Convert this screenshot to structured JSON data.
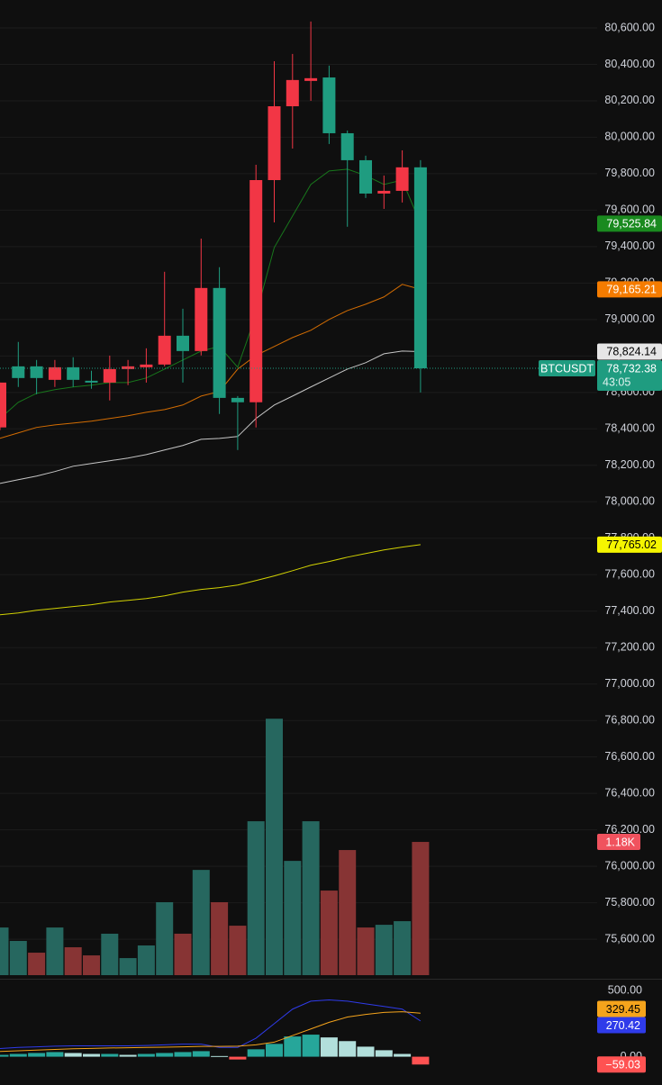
{
  "chart_data": [
    {
      "type": "candlestick",
      "symbol": "BTCUSDT",
      "countdown": "43:05",
      "last_price_label": "78,732.38",
      "up_color": "#f23645",
      "down_color": "#1f9c80",
      "open": [
        78408,
        78743,
        78743,
        78669,
        78738,
        78664,
        78654,
        78728,
        78738,
        78753,
        78911,
        78827,
        79173,
        78570,
        78546,
        79765,
        80170,
        80309,
        80328,
        80022,
        79874,
        79691,
        79706,
        79835
      ],
      "high": [
        78654,
        78877,
        78778,
        78778,
        78793,
        78719,
        78802,
        78778,
        78842,
        79262,
        79059,
        79444,
        79287,
        78580,
        79849,
        80417,
        80457,
        80635,
        80393,
        80037,
        79899,
        79790,
        79928,
        79874
      ],
      "low": [
        78393,
        78630,
        78590,
        78630,
        78630,
        78620,
        78556,
        78640,
        78654,
        78743,
        78654,
        78803,
        78482,
        78284,
        78408,
        79533,
        79938,
        80200,
        79963,
        79509,
        79667,
        79607,
        79642,
        78600
      ],
      "close": [
        78654,
        78679,
        78679,
        78738,
        78669,
        78654,
        78728,
        78743,
        78753,
        78911,
        78827,
        79173,
        78570,
        78546,
        79765,
        80170,
        80314,
        80324,
        80022,
        79874,
        79691,
        79706,
        79835,
        78732.38
      ],
      "ylim": [
        75393,
        80753
      ],
      "yticks": [
        {
          "value": 75600,
          "label": "75,600.00"
        },
        {
          "value": 75800,
          "label": "75,800.00"
        },
        {
          "value": 76000,
          "label": "76,000.00"
        },
        {
          "value": 76200,
          "label": "76,200.00"
        },
        {
          "value": 76400,
          "label": "76,400.00"
        },
        {
          "value": 76600,
          "label": "76,600.00"
        },
        {
          "value": 76800,
          "label": "76,800.00"
        },
        {
          "value": 77000,
          "label": "77,000.00"
        },
        {
          "value": 77200,
          "label": "77,200.00"
        },
        {
          "value": 77400,
          "label": "77,400.00"
        },
        {
          "value": 77600,
          "label": "77,600.00"
        },
        {
          "value": 77800,
          "label": "77,800.00"
        },
        {
          "value": 78000,
          "label": "78,000.00"
        },
        {
          "value": 78200,
          "label": "78,200.00"
        },
        {
          "value": 78400,
          "label": "78,400.00"
        },
        {
          "value": 78600,
          "label": "78,600.00"
        },
        {
          "value": 78800,
          "label": "78,800.00"
        },
        {
          "value": 79000,
          "label": "79,000.00"
        },
        {
          "value": 79200,
          "label": "79,200.00"
        },
        {
          "value": 79400,
          "label": "79,400.00"
        },
        {
          "value": 79600,
          "label": "79,600.00"
        },
        {
          "value": 79800,
          "label": "79,800.00"
        },
        {
          "value": 80000,
          "label": "80,000.00"
        },
        {
          "value": 80200,
          "label": "80,200.00"
        },
        {
          "value": 80400,
          "label": "80,400.00"
        },
        {
          "value": 80600,
          "label": "80,600.00"
        }
      ],
      "grid": true,
      "series": [
        {
          "color": "#1a8a1f",
          "label": "79,525.84",
          "values": [
            78457,
            78546,
            78595,
            78615,
            78630,
            78640,
            78654,
            78654,
            78679,
            78728,
            78778,
            78827,
            78852,
            78738,
            79025,
            79395,
            79568,
            79741,
            79815,
            79825,
            79790,
            79741,
            79765,
            79525.84
          ]
        },
        {
          "color": "#f57c00",
          "label": "79,165.21",
          "values": [
            78348,
            78378,
            78408,
            78422,
            78432,
            78442,
            78457,
            78472,
            78491,
            78506,
            78531,
            78580,
            78605,
            78728,
            78803,
            78852,
            78901,
            78941,
            79000,
            79049,
            79084,
            79124,
            79193,
            79165.21
          ]
        },
        {
          "color": "#e6e6e6",
          "label": "78,824.14",
          "values": [
            78101,
            78121,
            78141,
            78166,
            78195,
            78210,
            78225,
            78240,
            78259,
            78284,
            78309,
            78343,
            78348,
            78358,
            78457,
            78531,
            78580,
            78630,
            78679,
            78728,
            78763,
            78812,
            78827,
            78824.14
          ]
        },
        {
          "color": "#f5f500",
          "label": "77,765.02",
          "values": [
            77380,
            77390,
            77405,
            77415,
            77425,
            77435,
            77450,
            77459,
            77469,
            77484,
            77504,
            77519,
            77529,
            77543,
            77568,
            77593,
            77622,
            77652,
            77672,
            77696,
            77716,
            77736,
            77751,
            77765.02
          ]
        }
      ]
    },
    {
      "type": "bar",
      "label": "1.18K",
      "tag_color": "#f0525e",
      "values": [
        422,
        303,
        199,
        422,
        247,
        175,
        367,
        151,
        263,
        646,
        367,
        932,
        646,
        438,
        1363,
        2271,
        1012,
        1363,
        749,
        1108,
        422,
        446,
        478,
        1180
      ],
      "colors": [
        "#26675f",
        "#26675f",
        "#873434",
        "#26675f",
        "#873434",
        "#873434",
        "#26675f",
        "#26675f",
        "#26675f",
        "#26675f",
        "#873434",
        "#26675f",
        "#873434",
        "#873434",
        "#26675f",
        "#26675f",
        "#26675f",
        "#26675f",
        "#873434",
        "#873434",
        "#873434",
        "#26675f",
        "#26675f",
        "#873434"
      ]
    },
    {
      "type": "macd",
      "ylim": [
        -180,
        583
      ],
      "yticks": [
        {
          "value": 500,
          "label": "500.00"
        },
        {
          "value": 0,
          "label": "0.00"
        }
      ],
      "series": [
        {
          "color": "#2f3bea",
          "label": "270.42",
          "values": [
            62,
            70,
            75,
            80,
            82,
            82,
            82,
            82,
            85,
            90,
            95,
            95,
            70,
            70,
            140,
            250,
            360,
            420,
            430,
            420,
            400,
            380,
            360,
            270.42
          ]
        },
        {
          "color": "#f5a41c",
          "label": "329.45",
          "values": [
            40,
            45,
            50,
            55,
            60,
            63,
            66,
            68,
            70,
            72,
            75,
            78,
            78,
            80,
            90,
            110,
            160,
            210,
            260,
            300,
            320,
            335,
            340,
            329.45
          ]
        }
      ],
      "histogram": {
        "label": "−59.03",
        "up_color": "#26a69a",
        "fall_color": "#b2dfdb",
        "negative_color": "#ff5252",
        "values": [
          14,
          21,
          28,
          35,
          28,
          21,
          21,
          14,
          21,
          28,
          35,
          42,
          5,
          -21,
          56,
          97,
          153,
          167,
          146,
          118,
          76,
          49,
          21,
          -59.03
        ]
      }
    }
  ]
}
